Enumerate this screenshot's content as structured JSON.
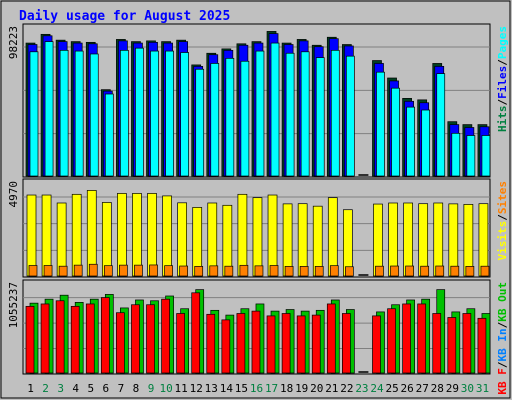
{
  "colors": {
    "background": "#c0c0c0",
    "title": "#0000ff",
    "pages": "#00ffff",
    "files": "#0000ff",
    "hits": "#008040",
    "visits": "#ffff00",
    "sites": "#ff8000",
    "kbf": "#ff0000",
    "kbin": "#0080ff",
    "kbout": "#00c000",
    "weekend_label": "#008040",
    "weekday_label": "#000000"
  },
  "chart_data": {
    "type": "bar",
    "title": "Daily usage for August 2025",
    "x": [
      "1",
      "2",
      "3",
      "4",
      "5",
      "6",
      "7",
      "8",
      "9",
      "10",
      "11",
      "12",
      "13",
      "14",
      "15",
      "16",
      "17",
      "18",
      "19",
      "20",
      "21",
      "22",
      "23",
      "24",
      "25",
      "26",
      "27",
      "28",
      "29",
      "30",
      "31"
    ],
    "weekend_days": [
      "2",
      "3",
      "9",
      "10",
      "16",
      "17",
      "23",
      "24",
      "30",
      "31"
    ],
    "panels": [
      {
        "id": "hits",
        "ytick_label": "98223",
        "ymax": 98223,
        "legend": [
          {
            "text": "Hits",
            "color": "#008040"
          },
          {
            "text": "/",
            "color": "#000000"
          },
          {
            "text": "Files",
            "color": "#0000ff"
          },
          {
            "text": "/",
            "color": "#000000"
          },
          {
            "text": "Pages",
            "color": "#00ffff"
          }
        ],
        "series": [
          {
            "name": "Hits",
            "color": "#008040",
            "values": [
              92000,
              98000,
              94000,
              93000,
              92500,
              60000,
              94500,
              93000,
              93500,
              93000,
              94000,
              77000,
              85000,
              88000,
              91500,
              93000,
              100000,
              92000,
              94500,
              90500,
              96000,
              91000,
              0,
              80000,
              68000,
              54000,
              53000,
              78000,
              38000,
              36000,
              36000
            ]
          },
          {
            "name": "Files",
            "color": "#0000ff",
            "values": [
              91000,
              97000,
              93000,
              92000,
              91500,
              59000,
              93500,
              92000,
              92500,
              92000,
              93000,
              76000,
              84000,
              87000,
              90500,
              92000,
              98500,
              91000,
              93500,
              89500,
              95000,
              90000,
              0,
              78000,
              66000,
              52000,
              51000,
              76000,
              36000,
              34000,
              34500
            ]
          },
          {
            "name": "Pages",
            "color": "#00ffff",
            "values": [
              86000,
              93000,
              87000,
              86500,
              84500,
              57000,
              87000,
              88500,
              86500,
              86500,
              85500,
              74000,
              78000,
              81500,
              79500,
              86500,
              92000,
              85000,
              86000,
              82000,
              87000,
              83000,
              0,
              72000,
              61000,
              48000,
              46000,
              71000,
              30000,
              28500,
              28500
            ]
          }
        ]
      },
      {
        "id": "visits",
        "ytick_label": "4970",
        "ymax": 4970,
        "legend": [
          {
            "text": "Visits",
            "color": "#ffff00"
          },
          {
            "text": "/",
            "color": "#000000"
          },
          {
            "text": "Sites",
            "color": "#ff8000"
          }
        ],
        "series": [
          {
            "name": "Visits",
            "color": "#ffff00",
            "values": [
              4630,
              4630,
              4180,
              4670,
              4890,
              4210,
              4720,
              4720,
              4720,
              4580,
              4190,
              3930,
              4180,
              4050,
              4670,
              4480,
              4630,
              4130,
              4140,
              4000,
              4480,
              3800,
              0,
              4120,
              4180,
              4180,
              4140,
              4180,
              4130,
              4100,
              4140
            ]
          },
          {
            "name": "Sites",
            "color": "#ff8000",
            "values": [
              650,
              650,
              610,
              670,
              720,
              640,
              670,
              670,
              680,
              640,
              620,
              600,
              630,
              610,
              660,
              630,
              650,
              600,
              600,
              600,
              640,
              580,
              0,
              610,
              620,
              620,
              610,
              620,
              610,
              600,
              610
            ]
          }
        ]
      },
      {
        "id": "kbytes",
        "ytick_label": "1055237",
        "ymax": 1055237,
        "legend": [
          {
            "text": "KB F",
            "color": "#ff0000"
          },
          {
            "text": "/",
            "color": "#000000"
          },
          {
            "text": "KB In",
            "color": "#0080ff"
          },
          {
            "text": "/",
            "color": "#000000"
          },
          {
            "text": "KB Out",
            "color": "#00c000"
          }
        ],
        "series": [
          {
            "name": "KB F",
            "color": "#ff0000",
            "values": [
              850000,
              880000,
              920000,
              850000,
              880000,
              960000,
              770000,
              870000,
              870000,
              940000,
              760000,
              1020000,
              750000,
              680000,
              760000,
              790000,
              730000,
              760000,
              730000,
              740000,
              880000,
              760000,
              0,
              730000,
              820000,
              880000,
              880000,
              760000,
              710000,
              760000,
              700000
            ]
          },
          {
            "name": "KB Out",
            "color": "#00c000",
            "values": [
              890000,
              940000,
              990000,
              900000,
              940000,
              1000000,
              830000,
              930000,
              920000,
              980000,
              820000,
              1060000,
              800000,
              740000,
              820000,
              880000,
              790000,
              810000,
              790000,
              800000,
              930000,
              810000,
              0,
              780000,
              870000,
              930000,
              940000,
              1060000,
              780000,
              820000,
              760000
            ]
          }
        ]
      }
    ]
  }
}
